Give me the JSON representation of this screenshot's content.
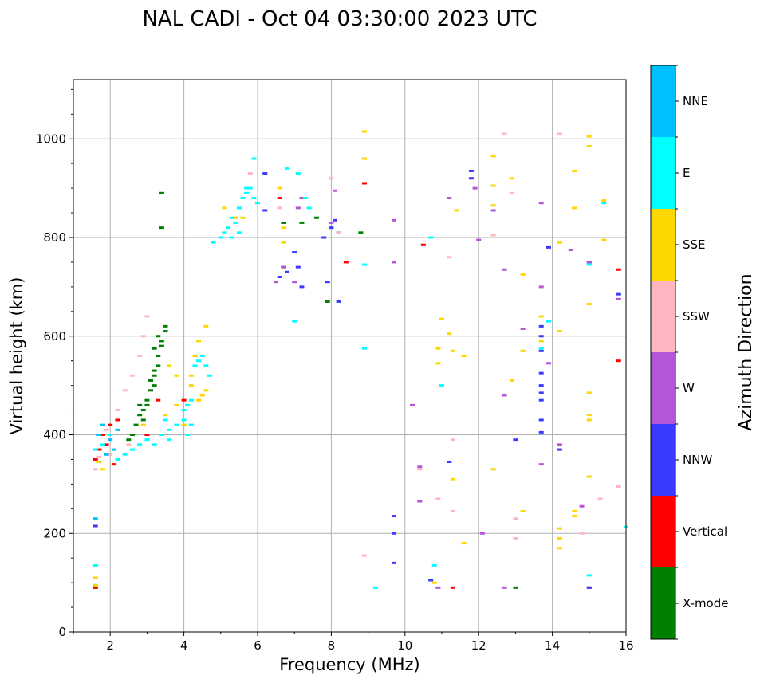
{
  "chart_data": {
    "type": "scatter",
    "title": "NAL CADI - Oct 04 03:30:00 2023 UTC",
    "xlabel": "Frequency (MHz)",
    "ylabel": "Virtual height (km)",
    "xlim": [
      1,
      16
    ],
    "ylim": [
      0,
      1120
    ],
    "xticks": [
      2,
      4,
      6,
      8,
      10,
      12,
      14,
      16
    ],
    "yticks": [
      0,
      200,
      400,
      600,
      800,
      1000
    ],
    "grid": true,
    "colorbar": {
      "label": "Azimuth Direction",
      "categories": [
        {
          "name": "X-mode",
          "color": "#008000"
        },
        {
          "name": "Vertical",
          "color": "#ff0000"
        },
        {
          "name": "NNW",
          "color": "#3a3aff"
        },
        {
          "name": "W",
          "color": "#b456d6"
        },
        {
          "name": "SSW",
          "color": "#ffb6c1"
        },
        {
          "name": "SSE",
          "color": "#ffd700"
        },
        {
          "name": "E",
          "color": "#00ffff"
        },
        {
          "name": "NNE",
          "color": "#00bfff"
        }
      ]
    },
    "series": [
      {
        "name": "X-mode",
        "points": [
          [
            2.7,
            420
          ],
          [
            2.8,
            440
          ],
          [
            2.9,
            450
          ],
          [
            3.0,
            470
          ],
          [
            3.1,
            490
          ],
          [
            3.1,
            510
          ],
          [
            3.2,
            520
          ],
          [
            3.2,
            530
          ],
          [
            3.3,
            540
          ],
          [
            3.3,
            560
          ],
          [
            3.4,
            580
          ],
          [
            3.4,
            590
          ],
          [
            3.5,
            610
          ],
          [
            3.5,
            620
          ],
          [
            2.6,
            400
          ],
          [
            2.5,
            390
          ],
          [
            3.0,
            460
          ],
          [
            2.9,
            430
          ],
          [
            3.2,
            500
          ],
          [
            3.4,
            820
          ],
          [
            3.4,
            890
          ],
          [
            6.7,
            830
          ],
          [
            7.2,
            830
          ],
          [
            7.6,
            840
          ],
          [
            8.2,
            810
          ],
          [
            8.8,
            810
          ],
          [
            7.9,
            670
          ],
          [
            1.6,
            90
          ],
          [
            13.0,
            90
          ],
          [
            3.2,
            575
          ],
          [
            3.3,
            600
          ],
          [
            2.8,
            460
          ]
        ]
      },
      {
        "name": "Vertical",
        "points": [
          [
            1.6,
            90
          ],
          [
            1.6,
            350
          ],
          [
            1.7,
            370
          ],
          [
            1.8,
            400
          ],
          [
            1.9,
            380
          ],
          [
            2.0,
            420
          ],
          [
            2.1,
            340
          ],
          [
            2.2,
            430
          ],
          [
            3.0,
            400
          ],
          [
            3.3,
            470
          ],
          [
            4.0,
            470
          ],
          [
            8.4,
            750
          ],
          [
            8.9,
            910
          ],
          [
            10.5,
            785
          ],
          [
            11.3,
            90
          ],
          [
            15.0,
            90
          ],
          [
            15.8,
            735
          ],
          [
            15.8,
            550
          ],
          [
            6.6,
            880
          ]
        ]
      },
      {
        "name": "NNW",
        "points": [
          [
            1.6,
            215
          ],
          [
            6.6,
            720
          ],
          [
            6.7,
            740
          ],
          [
            6.8,
            730
          ],
          [
            7.0,
            770
          ],
          [
            7.1,
            740
          ],
          [
            7.2,
            700
          ],
          [
            7.8,
            800
          ],
          [
            7.9,
            710
          ],
          [
            8.0,
            820
          ],
          [
            8.1,
            835
          ],
          [
            8.2,
            670
          ],
          [
            9.7,
            235
          ],
          [
            9.7,
            200
          ],
          [
            9.7,
            140
          ],
          [
            10.7,
            105
          ],
          [
            11.2,
            345
          ],
          [
            11.8,
            935
          ],
          [
            11.8,
            920
          ],
          [
            13.0,
            390
          ],
          [
            13.7,
            620
          ],
          [
            13.7,
            600
          ],
          [
            13.7,
            570
          ],
          [
            13.7,
            525
          ],
          [
            13.7,
            500
          ],
          [
            13.7,
            485
          ],
          [
            13.7,
            470
          ],
          [
            13.7,
            430
          ],
          [
            13.7,
            405
          ],
          [
            13.9,
            780
          ],
          [
            14.2,
            370
          ],
          [
            15.0,
            750
          ],
          [
            15.0,
            90
          ],
          [
            15.8,
            685
          ],
          [
            6.2,
            930
          ],
          [
            6.2,
            855
          ]
        ]
      },
      {
        "name": "W",
        "points": [
          [
            6.5,
            710
          ],
          [
            6.7,
            740
          ],
          [
            7.1,
            860
          ],
          [
            7.2,
            880
          ],
          [
            8.0,
            830
          ],
          [
            8.1,
            895
          ],
          [
            9.7,
            835
          ],
          [
            10.2,
            460
          ],
          [
            10.4,
            335
          ],
          [
            10.4,
            265
          ],
          [
            10.9,
            90
          ],
          [
            11.2,
            880
          ],
          [
            11.9,
            900
          ],
          [
            12.0,
            795
          ],
          [
            12.1,
            200
          ],
          [
            12.4,
            855
          ],
          [
            12.7,
            735
          ],
          [
            12.7,
            480
          ],
          [
            12.7,
            90
          ],
          [
            13.2,
            615
          ],
          [
            13.7,
            700
          ],
          [
            13.7,
            870
          ],
          [
            13.7,
            340
          ],
          [
            13.9,
            545
          ],
          [
            14.2,
            380
          ],
          [
            14.5,
            775
          ],
          [
            14.8,
            255
          ],
          [
            15.0,
            750
          ],
          [
            15.8,
            675
          ],
          [
            7.0,
            710
          ],
          [
            9.7,
            750
          ]
        ]
      },
      {
        "name": "SSW",
        "points": [
          [
            1.6,
            330
          ],
          [
            1.7,
            355
          ],
          [
            1.9,
            410
          ],
          [
            2.2,
            450
          ],
          [
            2.4,
            490
          ],
          [
            2.6,
            520
          ],
          [
            2.8,
            560
          ],
          [
            2.9,
            600
          ],
          [
            3.0,
            640
          ],
          [
            2.0,
            360
          ],
          [
            2.5,
            380
          ],
          [
            5.8,
            930
          ],
          [
            6.6,
            860
          ],
          [
            8.0,
            920
          ],
          [
            8.2,
            810
          ],
          [
            10.4,
            330
          ],
          [
            10.7,
            800
          ],
          [
            10.9,
            270
          ],
          [
            11.2,
            760
          ],
          [
            11.3,
            390
          ],
          [
            11.3,
            245
          ],
          [
            12.4,
            805
          ],
          [
            12.7,
            1010
          ],
          [
            12.9,
            890
          ],
          [
            13.0,
            230
          ],
          [
            13.0,
            190
          ],
          [
            14.2,
            1010
          ],
          [
            14.8,
            200
          ],
          [
            15.3,
            270
          ],
          [
            15.8,
            295
          ],
          [
            8.9,
            155
          ]
        ]
      },
      {
        "name": "SSE",
        "points": [
          [
            1.6,
            110
          ],
          [
            1.6,
            95
          ],
          [
            1.7,
            345
          ],
          [
            1.8,
            330
          ],
          [
            2.9,
            420
          ],
          [
            3.5,
            440
          ],
          [
            3.6,
            540
          ],
          [
            3.8,
            460
          ],
          [
            3.8,
            520
          ],
          [
            4.0,
            420
          ],
          [
            4.2,
            500
          ],
          [
            4.2,
            520
          ],
          [
            4.3,
            560
          ],
          [
            4.4,
            470
          ],
          [
            4.5,
            480
          ],
          [
            4.6,
            490
          ],
          [
            4.6,
            620
          ],
          [
            4.4,
            590
          ],
          [
            5.1,
            860
          ],
          [
            5.4,
            840
          ],
          [
            5.6,
            840
          ],
          [
            6.6,
            900
          ],
          [
            6.7,
            790
          ],
          [
            6.7,
            820
          ],
          [
            8.9,
            1015
          ],
          [
            8.9,
            960
          ],
          [
            10.8,
            100
          ],
          [
            10.9,
            575
          ],
          [
            10.9,
            545
          ],
          [
            11.0,
            635
          ],
          [
            11.2,
            605
          ],
          [
            11.3,
            310
          ],
          [
            11.3,
            570
          ],
          [
            11.4,
            855
          ],
          [
            12.4,
            965
          ],
          [
            12.4,
            905
          ],
          [
            12.4,
            865
          ],
          [
            12.9,
            920
          ],
          [
            12.9,
            510
          ],
          [
            13.2,
            725
          ],
          [
            13.2,
            570
          ],
          [
            13.2,
            245
          ],
          [
            13.7,
            640
          ],
          [
            13.7,
            590
          ],
          [
            14.2,
            790
          ],
          [
            14.2,
            610
          ],
          [
            14.2,
            210
          ],
          [
            14.2,
            190
          ],
          [
            14.2,
            170
          ],
          [
            14.6,
            935
          ],
          [
            14.6,
            860
          ],
          [
            14.6,
            245
          ],
          [
            14.6,
            235
          ],
          [
            15.0,
            1005
          ],
          [
            15.0,
            985
          ],
          [
            15.0,
            665
          ],
          [
            15.0,
            485
          ],
          [
            15.0,
            440
          ],
          [
            15.0,
            430
          ],
          [
            15.0,
            315
          ],
          [
            15.4,
            875
          ],
          [
            15.4,
            795
          ],
          [
            12.4,
            330
          ],
          [
            11.6,
            560
          ],
          [
            11.6,
            180
          ]
        ]
      },
      {
        "name": "E",
        "points": [
          [
            1.6,
            135
          ],
          [
            1.6,
            370
          ],
          [
            1.8,
            380
          ],
          [
            2.0,
            400
          ],
          [
            2.2,
            350
          ],
          [
            2.4,
            360
          ],
          [
            2.6,
            370
          ],
          [
            2.8,
            380
          ],
          [
            3.0,
            390
          ],
          [
            3.2,
            380
          ],
          [
            3.4,
            400
          ],
          [
            3.6,
            410
          ],
          [
            3.8,
            420
          ],
          [
            4.0,
            430
          ],
          [
            4.0,
            450
          ],
          [
            4.1,
            460
          ],
          [
            4.2,
            470
          ],
          [
            4.3,
            540
          ],
          [
            4.4,
            550
          ],
          [
            4.5,
            560
          ],
          [
            4.6,
            540
          ],
          [
            4.7,
            520
          ],
          [
            4.1,
            400
          ],
          [
            4.2,
            420
          ],
          [
            3.5,
            430
          ],
          [
            3.6,
            390
          ],
          [
            4.8,
            790
          ],
          [
            5.0,
            800
          ],
          [
            5.1,
            810
          ],
          [
            5.2,
            820
          ],
          [
            5.3,
            840
          ],
          [
            5.4,
            830
          ],
          [
            5.5,
            860
          ],
          [
            5.6,
            880
          ],
          [
            5.7,
            890
          ],
          [
            5.8,
            900
          ],
          [
            5.9,
            880
          ],
          [
            6.0,
            870
          ],
          [
            5.3,
            800
          ],
          [
            5.5,
            810
          ],
          [
            5.7,
            900
          ],
          [
            5.9,
            960
          ],
          [
            6.8,
            940
          ],
          [
            7.1,
            930
          ],
          [
            7.3,
            880
          ],
          [
            7.4,
            860
          ],
          [
            8.9,
            575
          ],
          [
            8.9,
            745
          ],
          [
            9.2,
            90
          ],
          [
            10.8,
            135
          ],
          [
            10.7,
            800
          ],
          [
            11.0,
            500
          ],
          [
            13.7,
            575
          ],
          [
            13.9,
            630
          ],
          [
            15.0,
            745
          ],
          [
            15.0,
            115
          ],
          [
            15.4,
            870
          ],
          [
            16.0,
            213
          ],
          [
            7.0,
            630
          ]
        ]
      },
      {
        "name": "NNE",
        "points": [
          [
            1.6,
            230
          ],
          [
            1.7,
            400
          ],
          [
            1.8,
            420
          ],
          [
            2.0,
            390
          ],
          [
            2.2,
            410
          ],
          [
            1.9,
            360
          ],
          [
            2.1,
            370
          ]
        ]
      }
    ]
  }
}
